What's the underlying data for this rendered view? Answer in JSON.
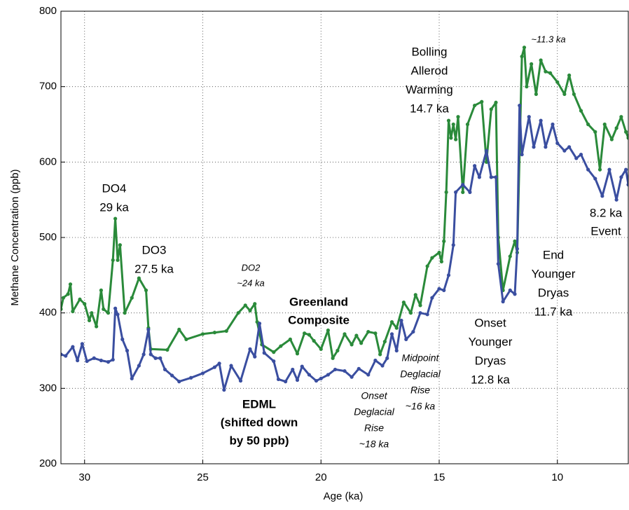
{
  "chart_data": {
    "type": "line",
    "xlabel": "Age (ka)",
    "ylabel": "Methane Concentration (ppb)",
    "xlim": [
      31,
      7
    ],
    "ylim": [
      200,
      800
    ],
    "xticks": [
      30,
      25,
      20,
      15,
      10
    ],
    "yticks": [
      200,
      300,
      400,
      500,
      600,
      700,
      800
    ],
    "grid": true,
    "series": [
      {
        "name": "Greenland Composite",
        "color": "#2a8a3a",
        "x": [
          31.0,
          30.9,
          30.7,
          30.6,
          30.5,
          30.2,
          30.0,
          29.8,
          29.7,
          29.5,
          29.3,
          29.2,
          29.0,
          28.8,
          28.7,
          28.6,
          28.5,
          28.3,
          28.0,
          27.7,
          27.4,
          27.3,
          27.2,
          26.5,
          26.0,
          25.7,
          25.0,
          24.5,
          24.0,
          23.5,
          23.2,
          23.0,
          22.8,
          22.7,
          22.5,
          22.0,
          21.7,
          21.3,
          21.0,
          20.7,
          20.5,
          20.3,
          20.0,
          19.7,
          19.5,
          19.3,
          19.0,
          18.7,
          18.5,
          18.3,
          18.0,
          17.7,
          17.5,
          17.3,
          17.0,
          16.8,
          16.5,
          16.2,
          16.0,
          15.8,
          15.5,
          15.3,
          15.0,
          14.9,
          14.8,
          14.7,
          14.6,
          14.5,
          14.4,
          14.3,
          14.2,
          14.0,
          13.8,
          13.5,
          13.2,
          13.0,
          12.8,
          12.6,
          12.5,
          12.3,
          12.0,
          11.8,
          11.7,
          11.5,
          11.4,
          11.3,
          11.1,
          10.9,
          10.7,
          10.5,
          10.3,
          10.0,
          9.7,
          9.5,
          9.3,
          9.0,
          8.7,
          8.4,
          8.2,
          8.0,
          7.7,
          7.5,
          7.3,
          7.1,
          7.0
        ],
        "values": [
          405,
          420,
          425,
          438,
          402,
          418,
          412,
          390,
          400,
          382,
          430,
          405,
          400,
          470,
          525,
          470,
          490,
          400,
          420,
          446,
          430,
          380,
          352,
          351,
          378,
          365,
          372,
          374,
          376,
          400,
          410,
          403,
          412,
          388,
          358,
          348,
          356,
          365,
          346,
          373,
          371,
          363,
          352,
          377,
          340,
          350,
          372,
          358,
          370,
          360,
          375,
          373,
          345,
          362,
          388,
          380,
          414,
          400,
          424,
          410,
          462,
          473,
          480,
          468,
          495,
          560,
          655,
          632,
          650,
          630,
          660,
          560,
          650,
          675,
          680,
          600,
          670,
          679,
          500,
          430,
          475,
          495,
          480,
          740,
          752,
          700,
          730,
          690,
          735,
          720,
          718,
          706,
          690,
          715,
          690,
          668,
          650,
          640,
          590,
          650,
          630,
          645,
          660,
          640,
          632
        ]
      },
      {
        "name": "EDML",
        "color": "#3a4ea0",
        "x": [
          31.0,
          30.8,
          30.5,
          30.3,
          30.1,
          29.9,
          29.6,
          29.3,
          29.0,
          28.8,
          28.7,
          28.6,
          28.4,
          28.2,
          28.0,
          27.7,
          27.5,
          27.3,
          27.2,
          27.0,
          26.8,
          26.6,
          26.3,
          26.0,
          25.5,
          25.0,
          24.5,
          24.3,
          24.1,
          23.8,
          23.4,
          23.0,
          22.8,
          22.6,
          22.4,
          22.0,
          21.8,
          21.5,
          21.2,
          21.0,
          20.8,
          20.5,
          20.2,
          20.0,
          19.7,
          19.4,
          19.0,
          18.7,
          18.4,
          18.0,
          17.7,
          17.4,
          17.2,
          17.0,
          16.8,
          16.6,
          16.4,
          16.1,
          15.8,
          15.5,
          15.3,
          15.0,
          14.8,
          14.6,
          14.4,
          14.3,
          14.0,
          13.7,
          13.5,
          13.3,
          13.0,
          12.8,
          12.6,
          12.5,
          12.3,
          12.0,
          11.8,
          11.7,
          11.6,
          11.5,
          11.2,
          11.0,
          10.7,
          10.5,
          10.2,
          10.0,
          9.7,
          9.5,
          9.2,
          9.0,
          8.7,
          8.4,
          8.1,
          7.8,
          7.5,
          7.3,
          7.1,
          7.0
        ],
        "values": [
          345,
          343,
          355,
          337,
          359,
          336,
          340,
          337,
          335,
          338,
          406,
          398,
          365,
          350,
          313,
          330,
          345,
          378,
          345,
          340,
          340,
          325,
          317,
          309,
          314,
          320,
          328,
          333,
          298,
          330,
          310,
          352,
          342,
          386,
          347,
          336,
          312,
          309,
          325,
          311,
          329,
          318,
          310,
          313,
          318,
          325,
          323,
          315,
          326,
          318,
          337,
          330,
          340,
          372,
          350,
          390,
          365,
          375,
          400,
          398,
          420,
          432,
          430,
          450,
          490,
          560,
          570,
          560,
          595,
          580,
          615,
          580,
          580,
          465,
          415,
          430,
          425,
          485,
          675,
          610,
          660,
          620,
          655,
          620,
          650,
          625,
          615,
          620,
          605,
          610,
          590,
          578,
          555,
          590,
          550,
          580,
          590,
          570
        ]
      }
    ],
    "annotations": [
      {
        "lines": [
          "DO4",
          "29 ka"
        ]
      },
      {
        "lines": [
          "DO3",
          "27.5 ka"
        ]
      },
      {
        "lines": [
          "DO2",
          "~24 ka"
        ]
      },
      {
        "lines": [
          "Greenland",
          "Composite"
        ]
      },
      {
        "lines": [
          "EDML",
          "(shifted down",
          "by 50 ppb)"
        ]
      },
      {
        "lines": [
          "Onset",
          "Deglacial",
          "Rise",
          "~18 ka"
        ]
      },
      {
        "lines": [
          "Midpoint",
          "Deglacial",
          "Rise",
          "~16 ka"
        ]
      },
      {
        "lines": [
          "Bolling",
          "Allerod",
          "Warming",
          "14.7 ka"
        ]
      },
      {
        "lines": [
          "Onset",
          "Younger",
          "Dryas",
          "12.8 ka"
        ]
      },
      {
        "lines": [
          "End",
          "Younger",
          "Dryas",
          "11.7 ka"
        ]
      },
      {
        "lines": [
          "~11.3 ka"
        ]
      },
      {
        "lines": [
          "8.2 ka",
          "Event"
        ]
      }
    ]
  }
}
